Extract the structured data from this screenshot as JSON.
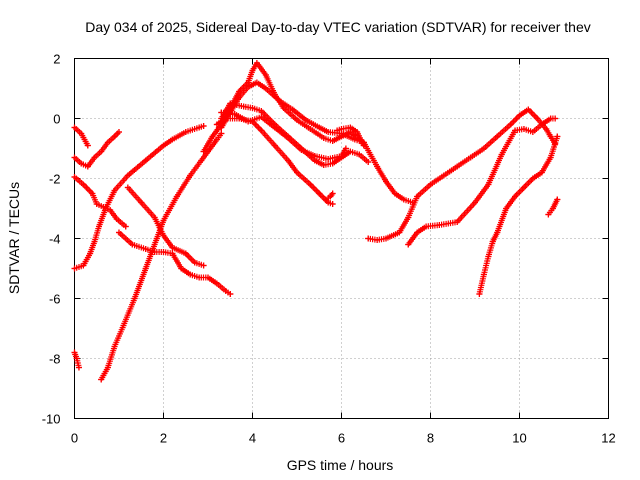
{
  "chart_data": {
    "type": "scatter",
    "title": "Day 034 of 2025, Sidereal Day-to-day VTEC variation (SDTVAR) for receiver thev",
    "xlabel": "GPS time / hours",
    "ylabel": "SDTVAR / TECUs",
    "xlim": [
      0,
      12
    ],
    "ylim": [
      -10,
      2
    ],
    "xticks": [
      0,
      2,
      4,
      6,
      8,
      10,
      12
    ],
    "yticks": [
      -10,
      -8,
      -6,
      -4,
      -2,
      0,
      2
    ],
    "grid": true,
    "marker": "+",
    "color": "#ff0000",
    "series": [
      {
        "name": "s1",
        "x": [
          0.0,
          0.15,
          0.3
        ],
        "y": [
          -0.3,
          -0.5,
          -0.9
        ]
      },
      {
        "name": "s2",
        "x": [
          0.0,
          0.15,
          0.3,
          0.45,
          0.6,
          0.75,
          0.9,
          1.0
        ],
        "y": [
          -1.3,
          -1.5,
          -1.6,
          -1.3,
          -1.1,
          -0.8,
          -0.6,
          -0.45
        ]
      },
      {
        "name": "s3",
        "x": [
          0.0,
          0.2,
          0.4,
          0.5,
          0.65,
          0.8,
          0.95,
          1.15
        ],
        "y": [
          -1.95,
          -2.2,
          -2.5,
          -2.85,
          -2.95,
          -3.05,
          -3.35,
          -3.6
        ]
      },
      {
        "name": "s4",
        "x": [
          0.0,
          0.2,
          0.35,
          0.45,
          0.55,
          0.7,
          0.9,
          1.2,
          1.6,
          2.0,
          2.2,
          2.5,
          2.8,
          2.9
        ],
        "y": [
          -5.0,
          -4.9,
          -4.5,
          -4.1,
          -3.6,
          -3.0,
          -2.4,
          -1.9,
          -1.4,
          -0.9,
          -0.7,
          -0.45,
          -0.3,
          -0.25
        ]
      },
      {
        "name": "s5",
        "x": [
          0.0,
          0.05,
          0.1
        ],
        "y": [
          -7.8,
          -8.0,
          -8.3
        ]
      },
      {
        "name": "s6",
        "x": [
          0.6,
          0.75,
          0.9,
          1.1,
          1.35,
          1.6,
          1.85,
          2.0,
          2.3,
          2.6,
          2.85,
          3.0,
          3.2,
          3.3
        ],
        "y": [
          -8.7,
          -8.3,
          -7.6,
          -6.9,
          -6.0,
          -5.0,
          -4.0,
          -3.4,
          -2.6,
          -1.9,
          -1.4,
          -1.1,
          -0.7,
          -0.5
        ]
      },
      {
        "name": "s7",
        "x": [
          1.0,
          1.3,
          1.6,
          1.8,
          2.0,
          2.2,
          2.4,
          2.6,
          2.8,
          3.0,
          3.2,
          3.4,
          3.5
        ],
        "y": [
          -3.8,
          -4.2,
          -4.35,
          -4.45,
          -4.45,
          -4.5,
          -5.0,
          -5.2,
          -5.3,
          -5.3,
          -5.5,
          -5.75,
          -5.85
        ]
      },
      {
        "name": "s8",
        "x": [
          1.2,
          1.5,
          1.8,
          2.0,
          2.2,
          2.5,
          2.7,
          2.9
        ],
        "y": [
          -2.3,
          -2.8,
          -3.3,
          -3.9,
          -4.3,
          -4.5,
          -4.8,
          -4.9
        ]
      },
      {
        "name": "s9",
        "x": [
          2.9,
          3.1,
          3.3,
          3.5,
          3.7,
          3.9,
          4.0,
          4.1,
          4.3,
          4.5,
          4.7,
          5.0,
          5.3,
          5.6,
          5.8,
          6.0,
          6.2,
          6.5,
          6.8,
          7.0,
          7.2,
          7.4,
          7.6
        ],
        "y": [
          -1.1,
          -0.6,
          -0.2,
          0.35,
          0.9,
          1.2,
          1.6,
          1.85,
          1.45,
          0.8,
          0.35,
          -0.05,
          -0.35,
          -0.65,
          -0.75,
          -0.6,
          -0.45,
          -0.8,
          -1.6,
          -2.1,
          -2.5,
          -2.7,
          -2.8
        ]
      },
      {
        "name": "s10",
        "x": [
          3.3,
          3.5,
          3.7,
          3.9,
          4.1,
          4.3,
          4.6,
          4.9,
          5.2,
          5.5,
          5.7,
          6.0,
          6.3,
          6.5
        ],
        "y": [
          -0.3,
          0.2,
          0.7,
          1.05,
          1.2,
          1.0,
          0.6,
          0.3,
          -0.05,
          -0.3,
          -0.45,
          -0.5,
          -0.7,
          -0.8
        ]
      },
      {
        "name": "s11",
        "x": [
          3.3,
          3.5,
          3.8,
          4.0,
          4.2,
          4.5,
          4.8,
          5.1,
          5.4,
          5.6,
          5.8,
          6.0,
          6.2,
          6.4,
          6.6
        ],
        "y": [
          0.0,
          0.5,
          0.4,
          0.35,
          0.25,
          -0.2,
          -0.6,
          -1.0,
          -1.4,
          -1.55,
          -1.5,
          -1.3,
          -1.1,
          -1.2,
          -1.45
        ]
      },
      {
        "name": "s12",
        "x": [
          3.2,
          3.4,
          3.7,
          4.0,
          4.2,
          4.5,
          4.8,
          5.0,
          5.3,
          5.5,
          5.7,
          5.8
        ],
        "y": [
          -0.2,
          0.0,
          0.0,
          -0.1,
          -0.4,
          -0.9,
          -1.4,
          -1.8,
          -2.2,
          -2.5,
          -2.8,
          -2.85
        ]
      },
      {
        "name": "s13",
        "x": [
          3.3,
          3.6,
          3.9,
          4.2,
          4.5,
          4.8,
          5.1,
          5.4,
          5.7,
          6.0,
          6.1
        ],
        "y": [
          0.2,
          0.15,
          -0.1,
          0.05,
          -0.3,
          -0.65,
          -1.05,
          -1.25,
          -1.35,
          -1.25,
          -1.0
        ]
      },
      {
        "name": "s14",
        "x": [
          5.65,
          5.75,
          5.8
        ],
        "y": [
          -2.7,
          -2.6,
          -2.5
        ]
      },
      {
        "name": "s15",
        "x": [
          5.9,
          6.0,
          6.2,
          6.35,
          6.5
        ],
        "y": [
          -0.4,
          -0.35,
          -0.3,
          -0.45,
          -0.9
        ]
      },
      {
        "name": "s16",
        "x": [
          6.6,
          6.8,
          7.0,
          7.3,
          7.5,
          7.7,
          8.0,
          8.3,
          8.6,
          8.9,
          9.2,
          9.5,
          9.8,
          10.0,
          10.2,
          10.4,
          10.6,
          10.7,
          10.8
        ],
        "y": [
          -4.0,
          -4.05,
          -4.0,
          -3.8,
          -3.3,
          -2.6,
          -2.2,
          -1.9,
          -1.6,
          -1.3,
          -1.0,
          -0.6,
          -0.2,
          0.1,
          0.3,
          0.0,
          -0.35,
          -0.6,
          -0.85
        ]
      },
      {
        "name": "s17",
        "x": [
          7.5,
          7.7,
          7.9,
          8.2,
          8.6,
          9.0,
          9.3,
          9.6,
          9.9,
          10.1,
          10.3,
          10.5,
          10.7,
          10.8
        ],
        "y": [
          -4.2,
          -3.8,
          -3.6,
          -3.55,
          -3.45,
          -2.8,
          -2.2,
          -1.2,
          -0.4,
          -0.35,
          -0.45,
          -0.2,
          0.0,
          0.0
        ]
      },
      {
        "name": "s18",
        "x": [
          9.1,
          9.2,
          9.3,
          9.4,
          9.5,
          9.7,
          9.9,
          10.1,
          10.3,
          10.5,
          10.7,
          10.85
        ],
        "y": [
          -5.85,
          -5.2,
          -4.6,
          -4.1,
          -3.8,
          -3.0,
          -2.6,
          -2.3,
          -2.0,
          -1.8,
          -1.3,
          -0.6
        ]
      },
      {
        "name": "s19",
        "x": [
          10.65,
          10.75,
          10.85
        ],
        "y": [
          -3.2,
          -3.0,
          -2.7
        ]
      }
    ]
  }
}
